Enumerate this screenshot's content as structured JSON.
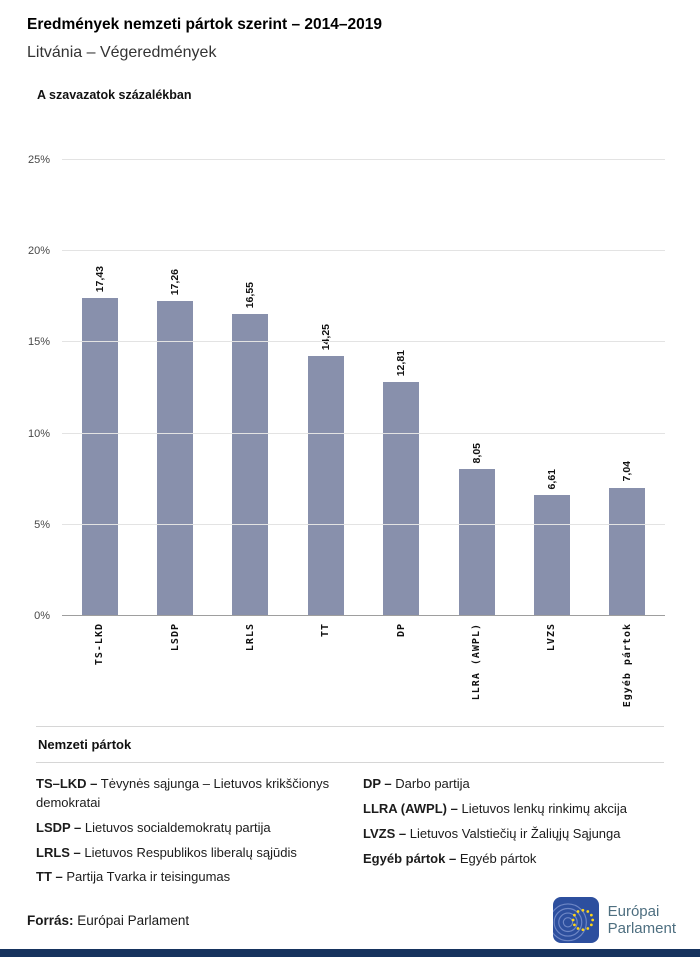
{
  "header": {
    "title": "Eredmények nemzeti pártok szerint – 2014–2019",
    "subtitle": "Litvánia – Végeredmények"
  },
  "chart": {
    "axis_title": "A szavazatok százalékban"
  },
  "chart_data": {
    "type": "bar",
    "title": "A szavazatok százalékban",
    "categories": [
      "TS-LKD",
      "LSDP",
      "LRLS",
      "TT",
      "DP",
      "LLRA (AWPL)",
      "LVZS",
      "Egyéb pártok"
    ],
    "values": [
      17.43,
      17.26,
      16.55,
      14.25,
      12.81,
      8.05,
      6.61,
      7.04
    ],
    "value_labels": [
      "17,43",
      "17,26",
      "16,55",
      "14,25",
      "12,81",
      "8,05",
      "6,61",
      "7,04"
    ],
    "xlabel": "",
    "ylabel": "A szavazatok százalékban",
    "ylim": [
      0,
      25
    ],
    "y_tick_step": 5,
    "y_tick_suffix": "%",
    "grid": true,
    "legend_position": "none",
    "bar_color": "#8890ac"
  },
  "legend": {
    "heading": "Nemzeti pártok",
    "items": [
      {
        "abbr": "TS–LKD –",
        "name": "Tėvynės sąjunga – Lietuvos krikščionys demokratai"
      },
      {
        "abbr": "LSDP –",
        "name": "Lietuvos socialdemokratų partija"
      },
      {
        "abbr": "LRLS –",
        "name": "Lietuvos Respublikos liberalų sąjūdis"
      },
      {
        "abbr": "TT –",
        "name": "Partija Tvarka ir teisingumas"
      },
      {
        "abbr": "DP –",
        "name": "Darbo partija"
      },
      {
        "abbr": "LLRA (AWPL) –",
        "name": "Lietuvos lenkų rinkimų akcija"
      },
      {
        "abbr": "LVZS –",
        "name": "Lietuvos Valstiečių ir Žaliųjų Sąjunga"
      },
      {
        "abbr": "Egyéb pártok –",
        "name": "Egyéb pártok"
      }
    ]
  },
  "footer": {
    "source_label": "Forrás:",
    "source_value": "Európai Parlament",
    "logo_text_line1": "Európai",
    "logo_text_line2": "Parlament"
  }
}
